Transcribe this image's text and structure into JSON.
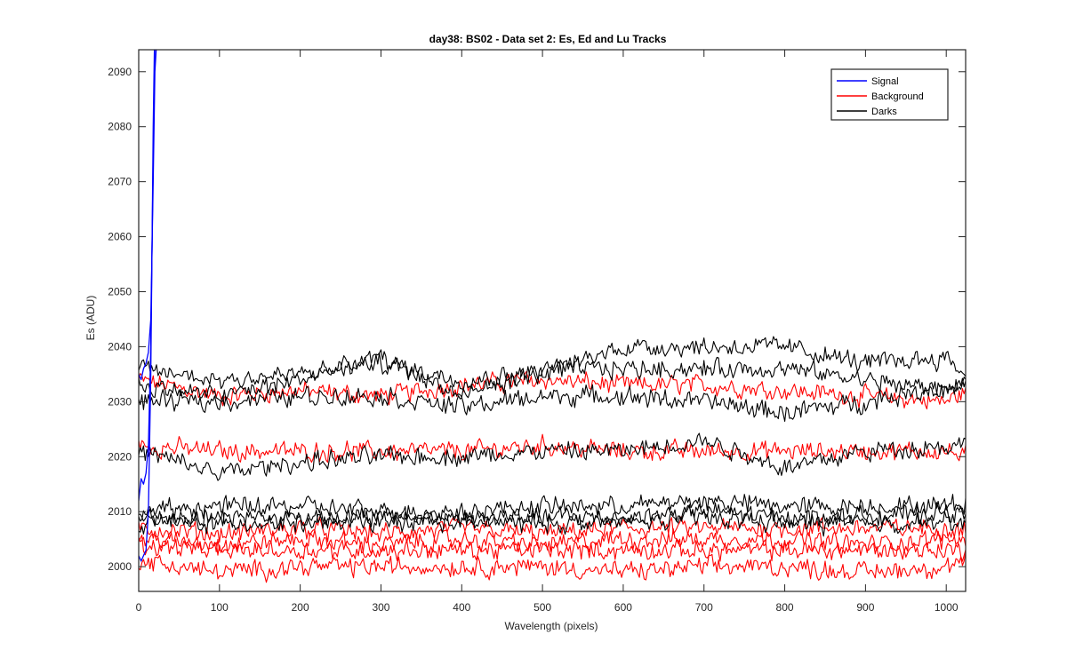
{
  "chart_data": {
    "type": "line",
    "title": "day38: BS02 - Data set 2: Es, Ed and Lu Tracks",
    "xlabel": "Wavelength (pixels)",
    "ylabel": "Es (ADU)",
    "xlim": [
      0,
      1024
    ],
    "ylim": [
      1995.5,
      2094
    ],
    "xticks": [
      0,
      100,
      200,
      300,
      400,
      500,
      600,
      700,
      800,
      900,
      1000
    ],
    "yticks": [
      2000,
      2010,
      2020,
      2030,
      2040,
      2050,
      2060,
      2070,
      2080,
      2090
    ],
    "grid": false,
    "legend_position": "top-right",
    "legend": [
      {
        "label": "Signal",
        "color": "#0000ff"
      },
      {
        "label": "Background",
        "color": "#ff0000"
      },
      {
        "label": "Darks",
        "color": "#000000"
      }
    ],
    "series": [
      {
        "group": "Signal",
        "color": "#0000ff",
        "x": [
          0,
          3,
          6,
          9,
          12,
          15,
          18,
          20,
          22,
          25
        ],
        "y": [
          2035,
          2034,
          2036,
          2037,
          2039,
          2045,
          2070,
          2090,
          2095,
          2100
        ]
      },
      {
        "group": "Signal",
        "color": "#0000ff",
        "x": [
          0,
          3,
          6,
          9,
          12,
          15,
          18,
          20,
          22
        ],
        "y": [
          2012,
          2016,
          2015,
          2017,
          2022,
          2040,
          2075,
          2095,
          2100
        ]
      },
      {
        "group": "Signal",
        "color": "#0000ff",
        "x": [
          0,
          3,
          6,
          9,
          12,
          15,
          18,
          20
        ],
        "y": [
          2002,
          2001,
          2002,
          2003,
          2010,
          2035,
          2080,
          2100
        ]
      },
      {
        "group": "Background",
        "color": "#ff0000",
        "x": [
          0,
          100,
          200,
          300,
          400,
          500,
          600,
          700,
          800,
          900,
          1000,
          1024
        ],
        "y": [
          2034,
          2031,
          2032,
          2031,
          2033,
          2034,
          2033,
          2033,
          2032,
          2031,
          2030,
          2032
        ]
      },
      {
        "group": "Background",
        "color": "#ff0000",
        "x": [
          0,
          100,
          200,
          300,
          400,
          500,
          600,
          700,
          800,
          900,
          1000,
          1024
        ],
        "y": [
          2022,
          2021,
          2021,
          2021,
          2021,
          2022,
          2021,
          2021,
          2021,
          2021,
          2021,
          2020
        ]
      },
      {
        "group": "Background",
        "color": "#ff0000",
        "x": [
          0,
          100,
          200,
          300,
          400,
          500,
          600,
          700,
          800,
          900,
          1000,
          1024
        ],
        "y": [
          2007,
          2006,
          2007,
          2006,
          2007,
          2006,
          2007,
          2007,
          2007,
          2007,
          2007,
          2007
        ]
      },
      {
        "group": "Background",
        "color": "#ff0000",
        "x": [
          0,
          100,
          200,
          300,
          400,
          500,
          600,
          700,
          800,
          900,
          1000,
          1024
        ],
        "y": [
          2005,
          2004,
          2005,
          2004,
          2005,
          2004,
          2005,
          2005,
          2005,
          2004,
          2005,
          2005
        ]
      },
      {
        "group": "Background",
        "color": "#ff0000",
        "x": [
          0,
          100,
          200,
          300,
          400,
          500,
          600,
          700,
          800,
          900,
          1000,
          1024
        ],
        "y": [
          2004,
          2003,
          2003,
          2003,
          2003,
          2003,
          2003,
          2003,
          2003,
          2003,
          2003,
          2003
        ]
      },
      {
        "group": "Background",
        "color": "#ff0000",
        "x": [
          0,
          100,
          200,
          300,
          400,
          500,
          600,
          700,
          800,
          900,
          1000,
          1024
        ],
        "y": [
          2001,
          1999,
          2000,
          2000,
          2000,
          2000,
          1999,
          2000,
          2000,
          1999,
          2000,
          2001
        ]
      },
      {
        "group": "Darks",
        "color": "#000000",
        "x": [
          0,
          100,
          200,
          300,
          400,
          500,
          600,
          700,
          800,
          900,
          1000,
          1024
        ],
        "y": [
          2036,
          2034,
          2035,
          2037,
          2034,
          2035,
          2040,
          2040,
          2040,
          2037,
          2038,
          2035
        ]
      },
      {
        "group": "Darks",
        "color": "#000000",
        "x": [
          0,
          100,
          200,
          300,
          400,
          500,
          600,
          700,
          800,
          900,
          1000,
          1024
        ],
        "y": [
          2033,
          2031,
          2034,
          2038,
          2031,
          2036,
          2036,
          2036,
          2036,
          2034,
          2032,
          2034
        ]
      },
      {
        "group": "Darks",
        "color": "#000000",
        "x": [
          0,
          100,
          200,
          300,
          400,
          500,
          600,
          700,
          800,
          900,
          1000,
          1024
        ],
        "y": [
          2030,
          2030,
          2031,
          2031,
          2029,
          2031,
          2031,
          2030,
          2028,
          2030,
          2033,
          2033
        ]
      },
      {
        "group": "Darks",
        "color": "#000000",
        "x": [
          0,
          100,
          200,
          300,
          400,
          500,
          600,
          700,
          800,
          900,
          1000,
          1024
        ],
        "y": [
          2021,
          2017,
          2019,
          2020,
          2020,
          2021,
          2021,
          2023,
          2018,
          2021,
          2022,
          2022
        ]
      },
      {
        "group": "Darks",
        "color": "#000000",
        "x": [
          0,
          100,
          200,
          300,
          400,
          500,
          600,
          700,
          800,
          900,
          1000,
          1024
        ],
        "y": [
          2010,
          2011,
          2011,
          2010,
          2010,
          2011,
          2011,
          2012,
          2011,
          2011,
          2011,
          2012
        ]
      },
      {
        "group": "Darks",
        "color": "#000000",
        "x": [
          0,
          100,
          200,
          300,
          400,
          500,
          600,
          700,
          800,
          900,
          1000,
          1024
        ],
        "y": [
          2009,
          2009,
          2009,
          2009,
          2009,
          2009,
          2009,
          2010,
          2009,
          2009,
          2010,
          2009
        ]
      },
      {
        "group": "Darks",
        "color": "#000000",
        "x": [
          0,
          100,
          200,
          300,
          400,
          500,
          600,
          700,
          800,
          900,
          1000,
          1024
        ],
        "y": [
          2008,
          2008,
          2008,
          2008,
          2008,
          2008,
          2008,
          2009,
          2008,
          2008,
          2008,
          2008
        ]
      }
    ]
  }
}
